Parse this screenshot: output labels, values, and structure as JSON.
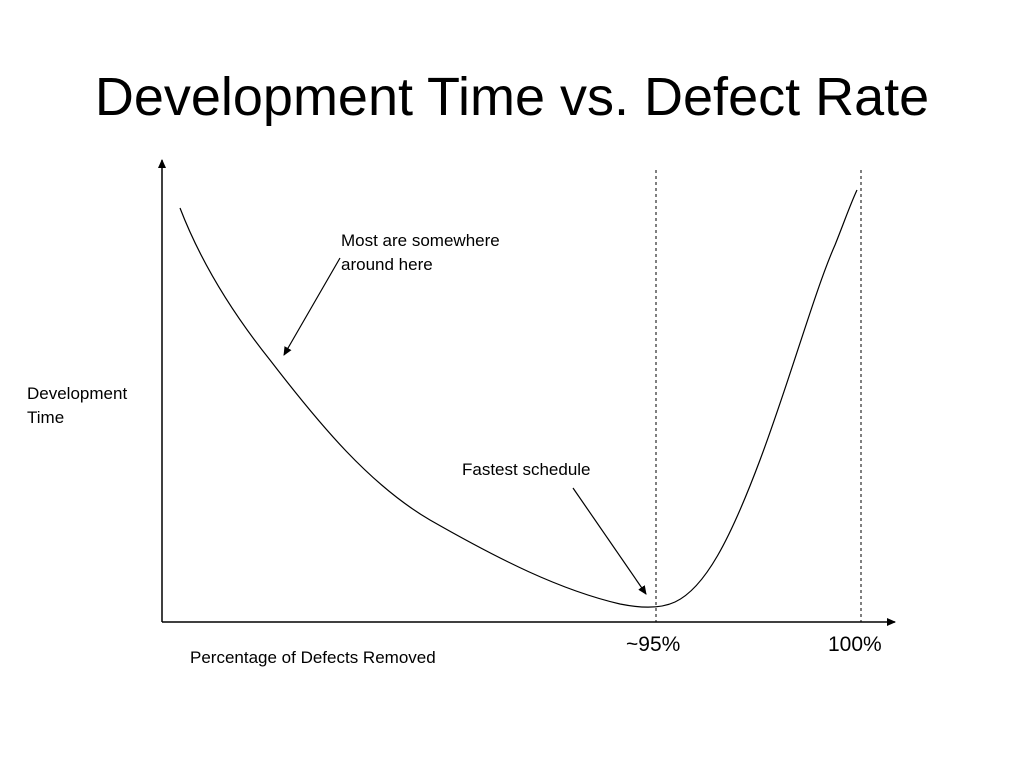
{
  "title": "Development Time vs. Defect Rate",
  "chart_data": {
    "type": "line",
    "xlabel": "Percentage of Defects Removed",
    "ylabel_lines": [
      "Development",
      "Time"
    ],
    "x_ticks": [
      "~95%",
      "100%"
    ],
    "annotations": {
      "most_lines": [
        "Most are somewhere",
        "around here"
      ],
      "fastest": "Fastest schedule"
    },
    "curve": "U-shaped development time curve with minimum near ~95% and steep rise approaching 100%"
  }
}
